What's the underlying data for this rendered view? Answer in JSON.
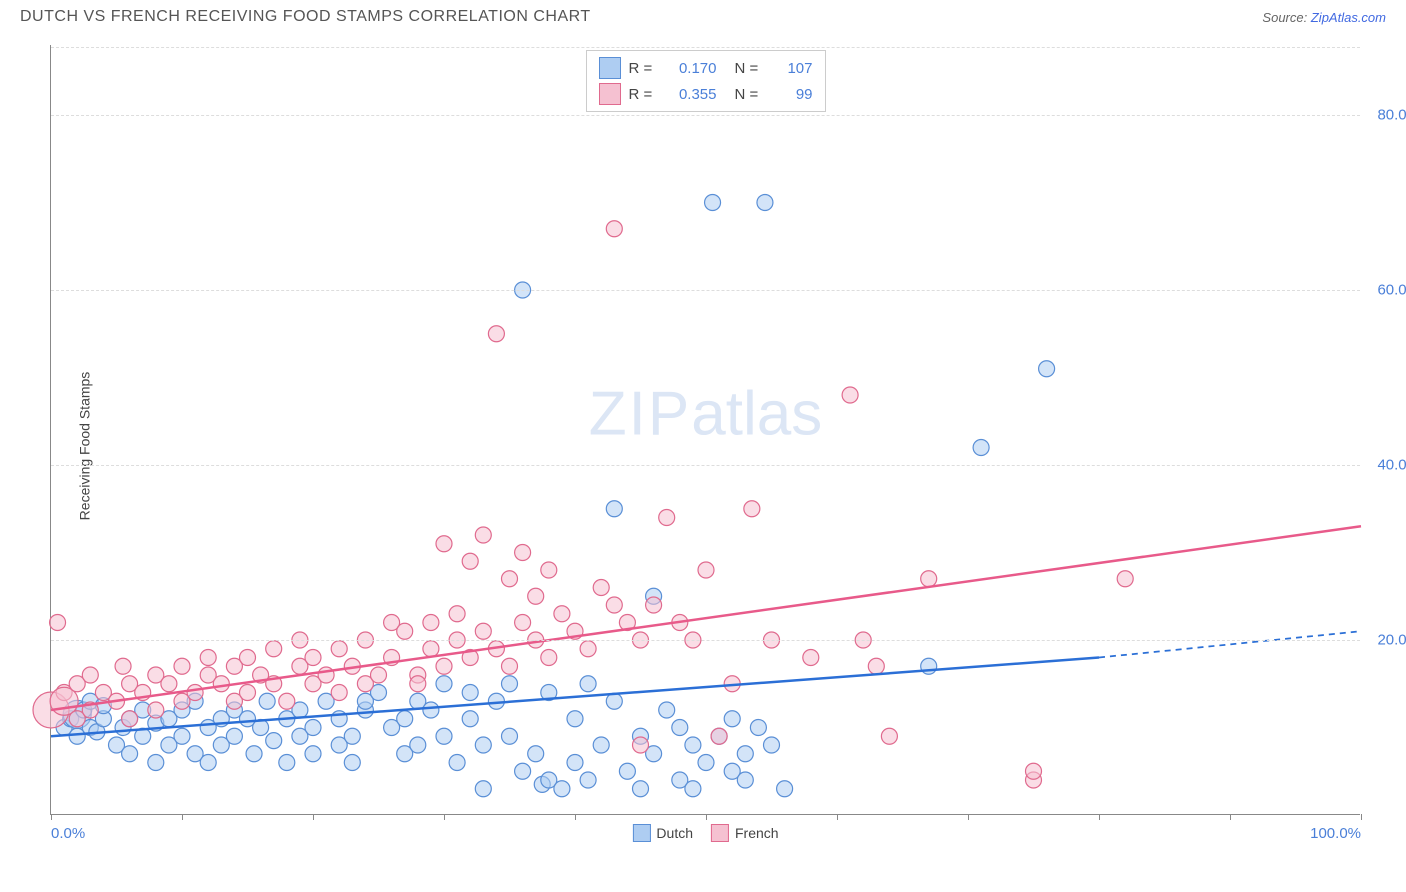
{
  "title": "DUTCH VS FRENCH RECEIVING FOOD STAMPS CORRELATION CHART",
  "source_label": "Source:",
  "source_name": "ZipAtlas.com",
  "ylabel": "Receiving Food Stamps",
  "watermark_a": "ZIP",
  "watermark_b": "atlas",
  "chart": {
    "type": "scatter",
    "xlim": [
      0,
      100
    ],
    "ylim": [
      0,
      88
    ],
    "xtick_positions": [
      0,
      10,
      20,
      30,
      40,
      50,
      60,
      70,
      80,
      90,
      100
    ],
    "xtick_labels": {
      "0": "0.0%",
      "100": "100.0%"
    },
    "ytick_positions": [
      20,
      40,
      60,
      80
    ],
    "ytick_labels": {
      "20": "20.0%",
      "40": "40.0%",
      "60": "60.0%",
      "80": "80.0%"
    },
    "grid_color": "#dddddd",
    "axis_color": "#888888",
    "background_color": "#ffffff",
    "series": [
      {
        "name": "Dutch",
        "color_fill": "#aecdf2",
        "color_stroke": "#5a8fd6",
        "fill_opacity": 0.55,
        "marker_radius": 8,
        "trend": {
          "x1": 0,
          "y1": 9,
          "x2": 80,
          "y2": 18,
          "x2_dash": 100,
          "y2_dash": 21
        },
        "trend_color": "#2b6fd6",
        "trend_width": 2.5,
        "R": "0.170",
        "N": "107",
        "points": [
          [
            1,
            10
          ],
          [
            1.5,
            11
          ],
          [
            2,
            9
          ],
          [
            2,
            11.5,
            14
          ],
          [
            2.5,
            12
          ],
          [
            3,
            10
          ],
          [
            3,
            13
          ],
          [
            3.5,
            9.5
          ],
          [
            4,
            11
          ],
          [
            4,
            12.5
          ],
          [
            5,
            8
          ],
          [
            5.5,
            10
          ],
          [
            6,
            11
          ],
          [
            6,
            7
          ],
          [
            7,
            12
          ],
          [
            7,
            9
          ],
          [
            8,
            10.5
          ],
          [
            8,
            6
          ],
          [
            9,
            11
          ],
          [
            9,
            8
          ],
          [
            10,
            12
          ],
          [
            10,
            9
          ],
          [
            11,
            7
          ],
          [
            11,
            13
          ],
          [
            12,
            10
          ],
          [
            12,
            6
          ],
          [
            13,
            11
          ],
          [
            13,
            8
          ],
          [
            14,
            9
          ],
          [
            14,
            12
          ],
          [
            15,
            11
          ],
          [
            15.5,
            7
          ],
          [
            16,
            10
          ],
          [
            16.5,
            13
          ],
          [
            17,
            8.5
          ],
          [
            18,
            11
          ],
          [
            18,
            6
          ],
          [
            19,
            9
          ],
          [
            19,
            12
          ],
          [
            20,
            10
          ],
          [
            20,
            7
          ],
          [
            21,
            13
          ],
          [
            22,
            8
          ],
          [
            22,
            11
          ],
          [
            23,
            9
          ],
          [
            23,
            6
          ],
          [
            24,
            12
          ],
          [
            24,
            13
          ],
          [
            25,
            14
          ],
          [
            26,
            10
          ],
          [
            27,
            11
          ],
          [
            27,
            7
          ],
          [
            28,
            13
          ],
          [
            28,
            8
          ],
          [
            29,
            12
          ],
          [
            30,
            9
          ],
          [
            30,
            15
          ],
          [
            31,
            6
          ],
          [
            32,
            11
          ],
          [
            32,
            14
          ],
          [
            33,
            8
          ],
          [
            33,
            3
          ],
          [
            34,
            13
          ],
          [
            35,
            9
          ],
          [
            35,
            15
          ],
          [
            36,
            5
          ],
          [
            36,
            60
          ],
          [
            37,
            7
          ],
          [
            37.5,
            3.5
          ],
          [
            38,
            4
          ],
          [
            38,
            14
          ],
          [
            39,
            3
          ],
          [
            40,
            6
          ],
          [
            40,
            11
          ],
          [
            41,
            15
          ],
          [
            41,
            4
          ],
          [
            42,
            8
          ],
          [
            43,
            35
          ],
          [
            43,
            13
          ],
          [
            44,
            5
          ],
          [
            45,
            9
          ],
          [
            45,
            3
          ],
          [
            46,
            25
          ],
          [
            46,
            7
          ],
          [
            47,
            12
          ],
          [
            48,
            4
          ],
          [
            48,
            10
          ],
          [
            49,
            8
          ],
          [
            49,
            3
          ],
          [
            50,
            6
          ],
          [
            50.5,
            70
          ],
          [
            51,
            9
          ],
          [
            52,
            5
          ],
          [
            52,
            11
          ],
          [
            53,
            7
          ],
          [
            53,
            4
          ],
          [
            54,
            10
          ],
          [
            54.5,
            70
          ],
          [
            55,
            8
          ],
          [
            56,
            3
          ],
          [
            76,
            51
          ],
          [
            71,
            42
          ],
          [
            67,
            17
          ]
        ]
      },
      {
        "name": "French",
        "color_fill": "#f5c1d1",
        "color_stroke": "#e06a8e",
        "fill_opacity": 0.55,
        "marker_radius": 8,
        "trend": {
          "x1": 0,
          "y1": 12,
          "x2": 100,
          "y2": 33
        },
        "trend_color": "#e85a8a",
        "trend_width": 2.5,
        "R": "0.355",
        "N": "99",
        "points": [
          [
            0,
            12,
            18
          ],
          [
            0.5,
            22
          ],
          [
            1,
            14
          ],
          [
            1,
            13,
            14
          ],
          [
            2,
            15
          ],
          [
            2,
            11
          ],
          [
            3,
            16
          ],
          [
            3,
            12
          ],
          [
            4,
            14
          ],
          [
            5,
            13
          ],
          [
            5.5,
            17
          ],
          [
            6,
            15
          ],
          [
            6,
            11
          ],
          [
            7,
            14
          ],
          [
            8,
            16
          ],
          [
            8,
            12
          ],
          [
            9,
            15
          ],
          [
            10,
            13
          ],
          [
            10,
            17
          ],
          [
            11,
            14
          ],
          [
            12,
            16
          ],
          [
            12,
            18
          ],
          [
            13,
            15
          ],
          [
            14,
            13
          ],
          [
            14,
            17
          ],
          [
            15,
            18
          ],
          [
            15,
            14
          ],
          [
            16,
            16
          ],
          [
            17,
            15
          ],
          [
            17,
            19
          ],
          [
            18,
            13
          ],
          [
            19,
            17
          ],
          [
            19,
            20
          ],
          [
            20,
            15
          ],
          [
            20,
            18
          ],
          [
            21,
            16
          ],
          [
            22,
            14
          ],
          [
            22,
            19
          ],
          [
            23,
            17
          ],
          [
            24,
            15
          ],
          [
            24,
            20
          ],
          [
            25,
            16
          ],
          [
            26,
            18
          ],
          [
            26,
            22
          ],
          [
            27,
            21
          ],
          [
            28,
            16
          ],
          [
            28,
            15
          ],
          [
            29,
            19
          ],
          [
            29,
            22
          ],
          [
            30,
            17
          ],
          [
            30,
            31
          ],
          [
            31,
            20
          ],
          [
            31,
            23
          ],
          [
            32,
            18
          ],
          [
            32,
            29
          ],
          [
            33,
            21
          ],
          [
            33,
            32
          ],
          [
            34,
            19
          ],
          [
            34,
            55
          ],
          [
            35,
            17
          ],
          [
            35,
            27
          ],
          [
            36,
            22
          ],
          [
            36,
            30
          ],
          [
            37,
            25
          ],
          [
            37,
            20
          ],
          [
            38,
            18
          ],
          [
            38,
            28
          ],
          [
            39,
            23
          ],
          [
            40,
            21
          ],
          [
            41,
            19
          ],
          [
            42,
            26
          ],
          [
            43,
            24
          ],
          [
            43,
            67
          ],
          [
            44,
            22
          ],
          [
            45,
            8
          ],
          [
            45,
            20
          ],
          [
            46,
            24
          ],
          [
            47,
            34
          ],
          [
            48,
            22
          ],
          [
            49,
            20
          ],
          [
            50,
            28
          ],
          [
            51,
            9
          ],
          [
            52,
            15
          ],
          [
            53.5,
            35
          ],
          [
            55,
            20
          ],
          [
            58,
            18
          ],
          [
            61,
            48
          ],
          [
            62,
            20
          ],
          [
            63,
            17
          ],
          [
            64,
            9
          ],
          [
            67,
            27
          ],
          [
            75,
            4
          ],
          [
            75,
            5
          ],
          [
            82,
            27
          ]
        ]
      }
    ]
  },
  "legend_top": {
    "rows": [
      {
        "series": 0
      },
      {
        "series": 1
      }
    ],
    "label_R": "R =",
    "label_N": "N ="
  },
  "legend_bottom": {
    "items": [
      {
        "series": 0
      },
      {
        "series": 1
      }
    ]
  }
}
